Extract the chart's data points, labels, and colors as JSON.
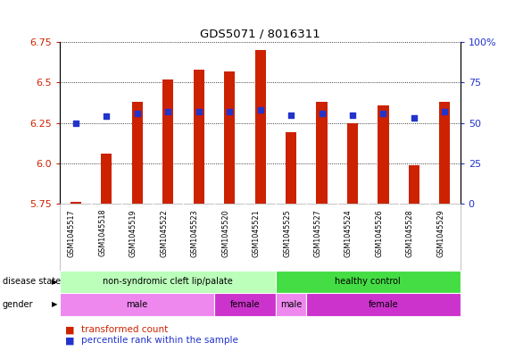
{
  "title": "GDS5071 / 8016311",
  "samples": [
    "GSM1045517",
    "GSM1045518",
    "GSM1045519",
    "GSM1045522",
    "GSM1045523",
    "GSM1045520",
    "GSM1045521",
    "GSM1045525",
    "GSM1045527",
    "GSM1045524",
    "GSM1045526",
    "GSM1045528",
    "GSM1045529"
  ],
  "bar_values": [
    5.76,
    6.06,
    6.38,
    6.52,
    6.58,
    6.57,
    6.7,
    6.19,
    6.38,
    6.25,
    6.36,
    5.99,
    6.38
  ],
  "dot_values": [
    50,
    54,
    56,
    57,
    57,
    57,
    58,
    55,
    56,
    55,
    56,
    53,
    57
  ],
  "bar_bottom": 5.75,
  "ylim": [
    5.75,
    6.75
  ],
  "y2lim": [
    0,
    100
  ],
  "yticks": [
    5.75,
    6.0,
    6.25,
    6.5,
    6.75
  ],
  "y2ticks": [
    0,
    25,
    50,
    75,
    100
  ],
  "y2tick_labels": [
    "0",
    "25",
    "50",
    "75",
    "100%"
  ],
  "bar_color": "#cc2200",
  "dot_color": "#2233cc",
  "disease_state_groups": [
    {
      "label": "non-syndromic cleft lip/palate",
      "start": 0,
      "end": 7,
      "color": "#bbffbb"
    },
    {
      "label": "healthy control",
      "start": 7,
      "end": 13,
      "color": "#44dd44"
    }
  ],
  "gender_groups": [
    {
      "label": "male",
      "start": 0,
      "end": 5,
      "color": "#ee88ee"
    },
    {
      "label": "female",
      "start": 5,
      "end": 7,
      "color": "#cc33cc"
    },
    {
      "label": "male",
      "start": 7,
      "end": 8,
      "color": "#ee88ee"
    },
    {
      "label": "female",
      "start": 8,
      "end": 13,
      "color": "#cc33cc"
    }
  ],
  "xlabel_disease": "disease state",
  "xlabel_gender": "gender",
  "legend_bar": "transformed count",
  "legend_dot": "percentile rank within the sample",
  "bg_color": "#ffffff",
  "bar_width": 0.35,
  "xtick_bg": "#cccccc",
  "left_label_color": "#000000"
}
